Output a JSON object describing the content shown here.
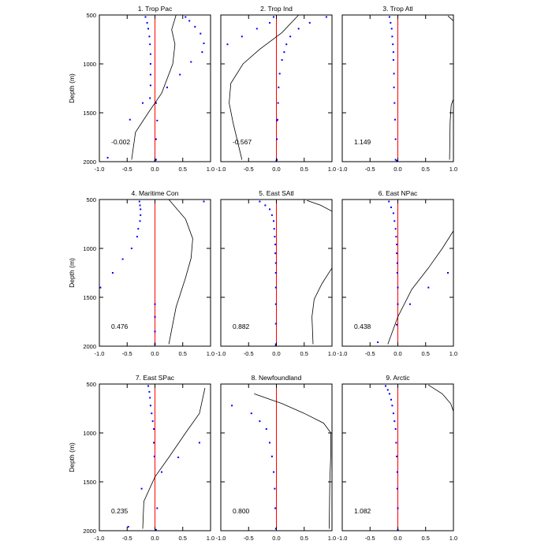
{
  "figure": {
    "ylabel": "Depth (m)"
  },
  "chart_data": [
    {
      "type": "line",
      "title": "1. Trop Pac",
      "annotation": "-0.002",
      "xlim": [
        -1.0,
        1.0
      ],
      "ylim": [
        2000,
        500
      ],
      "xticks": [
        "-1.0",
        "-0.5",
        "0.0",
        "0.5",
        "1.0"
      ],
      "yticks": [
        "500",
        "1000",
        "1500",
        "2000"
      ],
      "reference_line_x": 0,
      "series": [
        {
          "kind": "curve",
          "x": [
            0.38,
            0.3,
            0.36,
            0.32,
            0.12,
            -0.12,
            -0.35,
            -0.42
          ],
          "y": [
            500,
            650,
            800,
            1000,
            1300,
            1500,
            1700,
            1980
          ]
        },
        {
          "kind": "points",
          "x": [
            -0.17,
            -0.14,
            -0.12,
            -0.1,
            -0.09,
            -0.08,
            -0.08,
            -0.08,
            -0.08,
            -0.09
          ],
          "y": [
            520,
            580,
            640,
            720,
            800,
            900,
            1000,
            1110,
            1220,
            1350
          ]
        },
        {
          "kind": "points",
          "x": [
            0.55,
            0.62,
            0.72,
            0.82,
            0.88,
            0.85,
            0.65,
            0.45,
            0.22,
            0.02,
            -0.22,
            -0.45,
            0.04,
            0.02,
            0.02,
            -0.85,
            0.0
          ],
          "y": [
            520,
            560,
            620,
            690,
            790,
            880,
            980,
            1110,
            1240,
            1400,
            1400,
            1570,
            1580,
            1770,
            1980,
            1960,
            1990
          ]
        }
      ]
    },
    {
      "type": "line",
      "title": "2. Trop Ind",
      "annotation": "-0.567",
      "xlim": [
        -1.0,
        1.0
      ],
      "ylim": [
        2000,
        500
      ],
      "xticks": [
        "-1.0",
        "-0.5",
        "0.0",
        "0.5",
        "1.0"
      ],
      "yticks": [
        "500",
        "1000",
        "1500",
        "2000"
      ],
      "reference_line_x": 0,
      "series": [
        {
          "kind": "curve",
          "x": [
            0.4,
            0.1,
            -0.3,
            -0.6,
            -0.82,
            -0.85,
            -0.78,
            -0.62
          ],
          "y": [
            500,
            680,
            850,
            1000,
            1200,
            1400,
            1600,
            1980
          ]
        },
        {
          "kind": "points",
          "x": [
            0.9,
            0.6,
            0.4,
            0.25,
            0.18,
            0.14,
            0.1,
            0.06,
            0.04,
            0.03,
            0.02,
            0.01,
            0.01,
            0.01,
            0.0
          ],
          "y": [
            520,
            580,
            640,
            720,
            800,
            880,
            960,
            1100,
            1240,
            1400,
            1570,
            1580,
            1770,
            1980,
            1990
          ]
        },
        {
          "kind": "points",
          "x": [
            -0.05,
            -0.12,
            -0.35,
            -0.62,
            -0.88
          ],
          "y": [
            520,
            580,
            640,
            720,
            800
          ]
        }
      ]
    },
    {
      "type": "line",
      "title": "3. Trop Atl",
      "annotation": "1.149",
      "xlim": [
        -1.0,
        1.0
      ],
      "ylim": [
        2000,
        500
      ],
      "xticks": [
        "-1.0",
        "-0.5",
        "0.0",
        "0.5",
        "1.0"
      ],
      "yticks": [
        "500",
        "1000",
        "1500",
        "2000"
      ],
      "reference_line_x": 0,
      "series": [
        {
          "kind": "curve",
          "x": [
            0.9,
            1.0
          ],
          "y": [
            510,
            560
          ]
        },
        {
          "kind": "curve",
          "x": [
            1.0,
            0.96,
            0.94,
            0.93
          ],
          "y": [
            1360,
            1420,
            1600,
            1980
          ]
        },
        {
          "kind": "points",
          "x": [
            -0.15,
            -0.13,
            -0.11,
            -0.1,
            -0.09,
            -0.08,
            -0.08,
            -0.07,
            -0.07,
            -0.06,
            -0.05,
            -0.04,
            -0.04,
            -0.02
          ],
          "y": [
            520,
            580,
            640,
            720,
            800,
            880,
            960,
            1100,
            1240,
            1400,
            1570,
            1770,
            1980,
            1990
          ]
        }
      ]
    },
    {
      "type": "line",
      "title": "4. Maritime Con",
      "annotation": "0.476",
      "xlim": [
        -1.0,
        1.0
      ],
      "ylim": [
        2000,
        500
      ],
      "xticks": [
        "-1.0",
        "-0.5",
        "0.0",
        "0.5",
        "1.0"
      ],
      "yticks": [
        "500",
        "1000",
        "1500",
        "2000"
      ],
      "reference_line_x": 0,
      "series": [
        {
          "kind": "curve",
          "x": [
            0.25,
            0.55,
            0.68,
            0.65,
            0.55,
            0.38,
            0.25
          ],
          "y": [
            500,
            700,
            900,
            1100,
            1300,
            1600,
            1980
          ]
        },
        {
          "kind": "points",
          "x": [
            -0.28,
            -0.27,
            -0.26,
            -0.26,
            -0.27,
            -0.3,
            -0.32,
            -0.42,
            -0.58,
            -0.76,
            -0.98,
            0.88
          ],
          "y": [
            520,
            560,
            600,
            660,
            720,
            800,
            880,
            1000,
            1110,
            1250,
            1400,
            520
          ]
        },
        {
          "kind": "points",
          "x": [
            0.0,
            0.0,
            0.0,
            0.0
          ],
          "y": [
            1570,
            1700,
            1850,
            1980
          ]
        }
      ]
    },
    {
      "type": "line",
      "title": "5. East SAtl",
      "annotation": "0.882",
      "xlim": [
        -1.0,
        1.0
      ],
      "ylim": [
        2000,
        500
      ],
      "xticks": [
        "-1.0",
        "-0.5",
        "0.0",
        "0.5",
        "1.0"
      ],
      "yticks": [
        "500",
        "1000",
        "1500",
        "2000"
      ],
      "reference_line_x": 0,
      "series": [
        {
          "kind": "curve",
          "x": [
            0.55,
            0.8,
            1.0
          ],
          "y": [
            510,
            560,
            620
          ]
        },
        {
          "kind": "curve",
          "x": [
            1.0,
            0.82,
            0.68,
            0.64,
            0.66
          ],
          "y": [
            1200,
            1360,
            1520,
            1700,
            1980
          ]
        },
        {
          "kind": "points",
          "x": [
            -0.3,
            -0.2,
            -0.12,
            -0.08,
            -0.05,
            -0.04,
            -0.03,
            -0.02,
            -0.02,
            -0.01,
            -0.01,
            -0.01,
            -0.01,
            -0.01,
            -0.01,
            -0.01
          ],
          "y": [
            520,
            560,
            600,
            660,
            720,
            800,
            880,
            960,
            1050,
            1150,
            1250,
            1400,
            1570,
            1770,
            1980,
            1990
          ]
        }
      ]
    },
    {
      "type": "line",
      "title": "6. East NPac",
      "annotation": "0.438",
      "xlim": [
        -1.0,
        1.0
      ],
      "ylim": [
        2000,
        500
      ],
      "xticks": [
        "-1.0",
        "-0.5",
        "0.0",
        "0.5",
        "1.0"
      ],
      "yticks": [
        "500",
        "1000",
        "1500",
        "2000"
      ],
      "reference_line_x": 0,
      "series": [
        {
          "kind": "curve",
          "x": [
            1.0,
            0.8,
            0.55,
            0.25,
            0.0,
            -0.18
          ],
          "y": [
            820,
            1000,
            1200,
            1420,
            1700,
            1980
          ]
        },
        {
          "kind": "points",
          "x": [
            -0.16,
            -0.12,
            -0.08,
            -0.06,
            -0.04,
            -0.03,
            -0.02,
            -0.02,
            -0.01,
            -0.01,
            0.0,
            0.0,
            0.9,
            0.55,
            0.22,
            -0.02,
            -0.36
          ],
          "y": [
            520,
            580,
            640,
            720,
            800,
            880,
            960,
            1050,
            1150,
            1250,
            1400,
            1570,
            1250,
            1400,
            1570,
            1780,
            1960
          ]
        }
      ]
    },
    {
      "type": "line",
      "title": "7. East SPac",
      "annotation": "0.235",
      "xlim": [
        -1.0,
        1.0
      ],
      "ylim": [
        2000,
        500
      ],
      "xticks": [
        "-1.0",
        "-0.5",
        "0.0",
        "0.5",
        "1.0"
      ],
      "yticks": [
        "500",
        "1000",
        "1500",
        "2000"
      ],
      "reference_line_x": 0,
      "series": [
        {
          "kind": "curve",
          "x": [
            0.9,
            0.8,
            0.55,
            0.25,
            0.0,
            -0.2,
            -0.22
          ],
          "y": [
            540,
            800,
            1000,
            1250,
            1450,
            1700,
            1980
          ]
        },
        {
          "kind": "points",
          "x": [
            -0.12,
            -0.1,
            -0.09,
            -0.08,
            -0.06,
            -0.04,
            -0.02,
            -0.02,
            -0.01,
            0.8,
            0.42,
            0.12,
            -0.24,
            0.04,
            -0.48,
            0.02
          ],
          "y": [
            520,
            580,
            640,
            720,
            800,
            880,
            960,
            1100,
            1240,
            1100,
            1250,
            1400,
            1570,
            1770,
            1960,
            1990
          ]
        }
      ]
    },
    {
      "type": "line",
      "title": "8. Newfoundland",
      "annotation": "0.800",
      "xlim": [
        -1.0,
        1.0
      ],
      "ylim": [
        2000,
        500
      ],
      "xticks": [
        "-1.0",
        "-0.5",
        "0.0",
        "0.5",
        "1.0"
      ],
      "yticks": [
        "500",
        "1000",
        "1500",
        "2000"
      ],
      "reference_line_x": 0,
      "series": [
        {
          "kind": "curve",
          "x": [
            -0.4,
            0.1,
            0.5,
            0.85,
            0.98,
            0.98,
            0.96,
            0.95
          ],
          "y": [
            600,
            700,
            800,
            900,
            1000,
            1200,
            1500,
            1980
          ]
        },
        {
          "kind": "points",
          "x": [
            -0.8,
            -0.45,
            -0.3,
            -0.18,
            -0.12,
            -0.08,
            -0.05,
            -0.03,
            -0.02,
            -0.01
          ],
          "y": [
            720,
            800,
            880,
            960,
            1100,
            1240,
            1400,
            1570,
            1770,
            1980
          ]
        }
      ]
    },
    {
      "type": "line",
      "title": "9. Arctic",
      "annotation": "1.082",
      "xlim": [
        -1.0,
        1.0
      ],
      "ylim": [
        2000,
        500
      ],
      "xticks": [
        "-1.0",
        "-0.5",
        "0.0",
        "0.5",
        "1.0"
      ],
      "yticks": [
        "500",
        "1000",
        "1500",
        "2000"
      ],
      "reference_line_x": 0,
      "series": [
        {
          "kind": "curve",
          "x": [
            0.55,
            0.8,
            0.95,
            1.0
          ],
          "y": [
            510,
            600,
            700,
            780
          ]
        },
        {
          "kind": "points",
          "x": [
            -0.22,
            -0.18,
            -0.15,
            -0.12,
            -0.1,
            -0.08,
            -0.06,
            -0.04,
            -0.03,
            -0.02,
            -0.01,
            -0.01,
            0.0,
            0.0
          ],
          "y": [
            520,
            560,
            600,
            660,
            720,
            800,
            880,
            960,
            1100,
            1240,
            1400,
            1570,
            1770,
            1990
          ]
        }
      ]
    }
  ]
}
